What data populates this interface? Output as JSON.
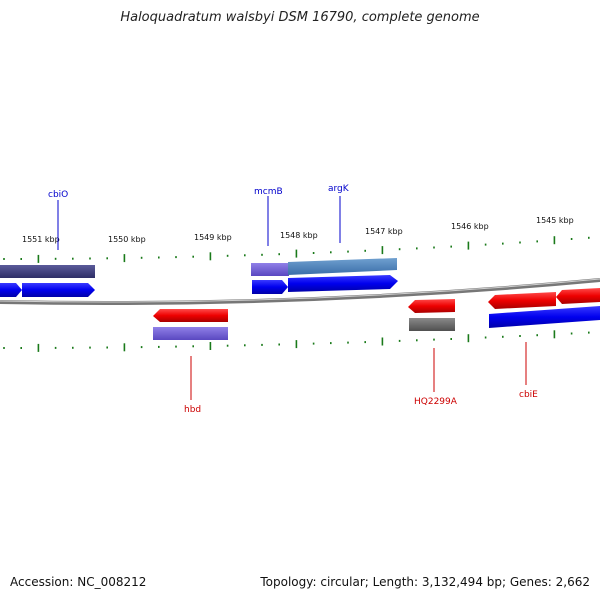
{
  "title": "Haloquadratum walsbyi DSM 16790, complete genome",
  "footer": {
    "accession": "Accession: NC_008212",
    "summary": "Topology: circular; Length: 3,132,494 bp; Genes: 2,662"
  },
  "colors": {
    "forward_gene": "#0000ee",
    "reverse_gene": "#ee0000",
    "forward_label": "#0000cc",
    "reverse_label": "#cc0000",
    "tick": "#1a7a1a",
    "backbone": "#777777"
  },
  "scale_labels": [
    "1551 kbp",
    "1550 kbp",
    "1549 kbp",
    "1548 kbp",
    "1547 kbp",
    "1546 kbp",
    "1545 kbp"
  ],
  "gene_labels": {
    "forward": [
      "cbiO",
      "mcmB",
      "argK"
    ],
    "reverse": [
      "hbd",
      "HQ2299A",
      "cbiE"
    ]
  }
}
